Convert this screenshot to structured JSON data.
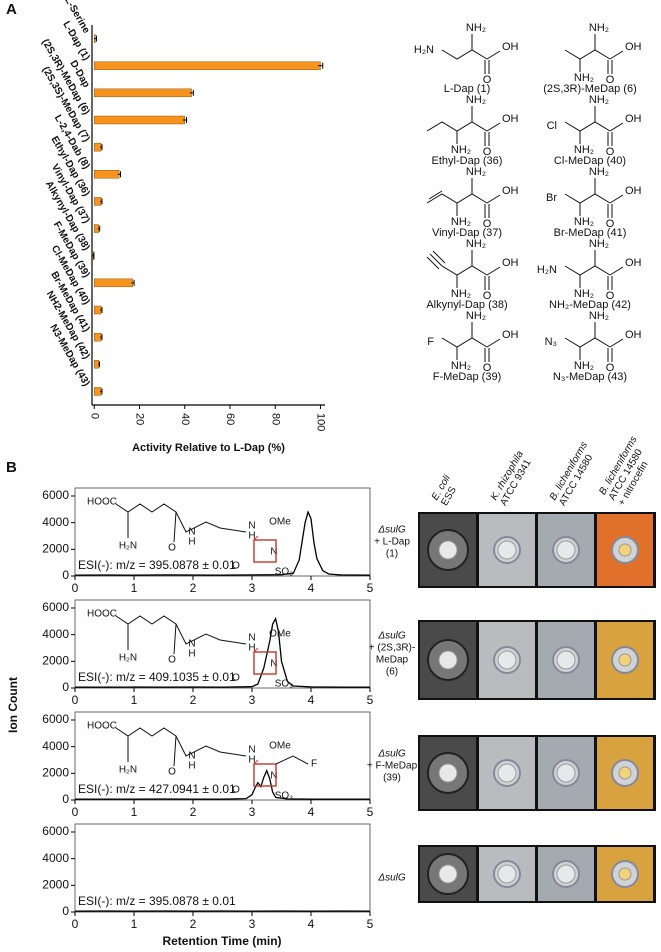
{
  "panel_labels": [
    "A",
    "B"
  ],
  "chart_data": [
    {
      "type": "barh",
      "xlabel": "Activity Relative to L-Dap (%)",
      "categories": [
        "L-Serine",
        "L-Dap (1)",
        "D-Dap",
        "(2S,3R)-MeDap (6)",
        "(2S,3S)-MeDap (7)",
        "L-2,4-Dab (8)",
        "Ethyl-Dap (36)",
        "Vinyl-Dap (37)",
        "Alkynyl-Dap (38)",
        "F-MeDap (39)",
        "Cl-MeDap (40)",
        "Br-MeDap (41)",
        "NH2-MeDap (42)",
        "N3-MeDap (43)"
      ],
      "values": [
        0.5,
        100,
        43,
        40,
        3,
        11,
        3,
        2,
        -0.5,
        17,
        3,
        3,
        2,
        3
      ],
      "errors": [
        0.5,
        1,
        0.8,
        0.8,
        0.4,
        0.6,
        0.4,
        0.4,
        0.3,
        0.6,
        0.4,
        0.4,
        0.3,
        0.4
      ],
      "color": "#f7941d",
      "xlim": [
        -1,
        102
      ],
      "xticks": [
        0,
        20,
        40,
        60,
        80,
        100
      ]
    },
    {
      "type": "line",
      "annotation": "ESI(-): m/z = 395.0878 ± 0.01",
      "sample_label": [
        "ΔsulG",
        "+ L-Dap",
        "(1)"
      ],
      "structure_labels": [
        "HOOC",
        "H₂N",
        "H",
        "N",
        "O",
        "H",
        "N",
        "OMe",
        "O",
        "N",
        "SO₃"
      ],
      "x": [
        0,
        0.5,
        1,
        1.5,
        2,
        2.5,
        3,
        3.5,
        3.7,
        3.8,
        3.85,
        3.9,
        3.95,
        4.0,
        4.05,
        4.1,
        4.2,
        4.3,
        4.5,
        5
      ],
      "values": [
        60,
        70,
        60,
        80,
        70,
        60,
        80,
        100,
        200,
        1200,
        2600,
        4000,
        4800,
        4300,
        2500,
        1300,
        400,
        150,
        80,
        60
      ],
      "color": "#000000",
      "xlim": [
        0,
        5
      ],
      "xticks": [
        0,
        1,
        2,
        3,
        4,
        5
      ],
      "ylim": [
        0,
        6600
      ],
      "yticks": [
        0,
        2000,
        4000,
        6000
      ]
    },
    {
      "type": "line",
      "annotation": "ESI(-): m/z = 409.1035 ± 0.01",
      "sample_label": [
        "ΔsulG",
        "+ (2S,3R)-",
        "MeDap",
        "(6)"
      ],
      "structure_labels": [
        "HOOC",
        "H₂N",
        "H",
        "N",
        "O",
        "H",
        "N",
        "OMe",
        "O",
        "N",
        "SO₃"
      ],
      "x": [
        0,
        0.5,
        1,
        1.5,
        2,
        2.5,
        3,
        3.1,
        3.2,
        3.3,
        3.35,
        3.4,
        3.45,
        3.5,
        3.6,
        3.7,
        4,
        4.5,
        5
      ],
      "values": [
        60,
        60,
        70,
        60,
        70,
        60,
        100,
        300,
        1500,
        3500,
        4800,
        5200,
        4200,
        2000,
        500,
        150,
        80,
        60,
        60
      ],
      "color": "#000000",
      "xlim": [
        0,
        5
      ],
      "xticks": [
        0,
        1,
        2,
        3,
        4,
        5
      ],
      "ylim": [
        0,
        6600
      ],
      "yticks": [
        0,
        2000,
        4000,
        6000
      ]
    },
    {
      "type": "line",
      "annotation": "ESI(-): m/z = 427.0941 ± 0.01",
      "sample_label": [
        "ΔsulG",
        "+ F-MeDap",
        "(39)"
      ],
      "structure_labels": [
        "HOOC",
        "H₂N",
        "H",
        "N",
        "O",
        "H",
        "N",
        "OMe",
        "O",
        "N",
        "SO₃",
        "F"
      ],
      "x": [
        0,
        0.5,
        1,
        1.5,
        2,
        2.5,
        2.9,
        3.0,
        3.05,
        3.1,
        3.15,
        3.2,
        3.25,
        3.3,
        3.35,
        3.4,
        3.6,
        4,
        4.5,
        5
      ],
      "values": [
        60,
        60,
        60,
        70,
        60,
        60,
        100,
        400,
        900,
        1300,
        1000,
        1700,
        2200,
        1600,
        600,
        200,
        80,
        60,
        60,
        60
      ],
      "color": "#000000",
      "xlim": [
        0,
        5
      ],
      "xticks": [
        0,
        1,
        2,
        3,
        4,
        5
      ],
      "ylim": [
        0,
        6600
      ],
      "yticks": [
        0,
        2000,
        4000,
        6000
      ]
    },
    {
      "type": "line",
      "annotation": "ESI(-): m/z = 395.0878 ± 0.01",
      "sample_label": [
        "ΔsulG"
      ],
      "x": [
        0,
        0.5,
        1,
        1.5,
        2,
        2.5,
        3,
        3.5,
        4,
        4.5,
        5
      ],
      "values": [
        60,
        70,
        60,
        70,
        60,
        70,
        60,
        70,
        60,
        70,
        60
      ],
      "color": "#000000",
      "xlim": [
        0,
        5
      ],
      "xticks": [
        0,
        1,
        2,
        3,
        4,
        5
      ],
      "ylim": [
        0,
        6600
      ],
      "yticks": [
        0,
        2000,
        4000,
        6000
      ]
    }
  ],
  "ylabel_b": "Ion Count",
  "xlabel_b": "Retention Time (min)",
  "strains": [
    [
      "E. coli",
      "ESS"
    ],
    [
      "K. rhizophila",
      "ATCC 9341"
    ],
    [
      "B. licheniforms",
      "ATCC 14580"
    ],
    [
      "B. licheniforms",
      "ATCC 14580",
      "+ nitrocefin"
    ]
  ],
  "structures": [
    {
      "label": "L-Dap (1)",
      "alpha_amine": "NH₂",
      "acid": "OH",
      "carbonyl": "O",
      "terminal": "H₂N"
    },
    {
      "label": "(2S,3R)-MeDap (6)",
      "alpha_amine": "NH₂",
      "acid": "OH",
      "carbonyl": "O",
      "beta_amine": "NH₂"
    },
    {
      "label": "Ethyl-Dap (36)",
      "alpha_amine": "NH₂",
      "acid": "OH",
      "carbonyl": "O",
      "beta_amine": "NH₂"
    },
    {
      "label": "Cl-MeDap (40)",
      "alpha_amine": "NH₂",
      "acid": "OH",
      "carbonyl": "O",
      "beta_amine": "NH₂",
      "terminal": "Cl"
    },
    {
      "label": "Vinyl-Dap (37)",
      "alpha_amine": "NH₂",
      "acid": "OH",
      "carbonyl": "O",
      "beta_amine": "NH₂"
    },
    {
      "label": "Br-MeDap (41)",
      "alpha_amine": "NH₂",
      "acid": "OH",
      "carbonyl": "O",
      "beta_amine": "NH₂",
      "terminal": "Br"
    },
    {
      "label": "Alkynyl-Dap (38)",
      "alpha_amine": "NH₂",
      "acid": "OH",
      "carbonyl": "O",
      "beta_amine": "NH₂"
    },
    {
      "label": "NH₂-MeDap (42)",
      "alpha_amine": "NH₂",
      "acid": "OH",
      "carbonyl": "O",
      "beta_amine": "NH₂",
      "terminal": "H₂N"
    },
    {
      "label": "F-MeDap (39)",
      "alpha_amine": "NH₂",
      "acid": "OH",
      "carbonyl": "O",
      "beta_amine": "NH₂",
      "terminal": "F"
    },
    {
      "label": "N₃-MeDap (43)",
      "alpha_amine": "NH₂",
      "acid": "OH",
      "carbonyl": "O",
      "beta_amine": "NH₂",
      "terminal": "N₃"
    }
  ]
}
